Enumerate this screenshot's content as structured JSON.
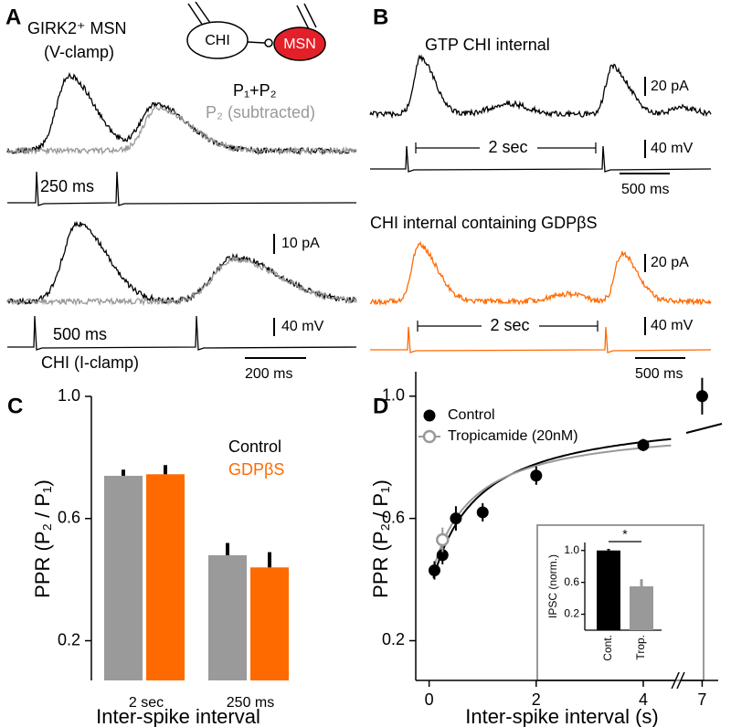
{
  "panels": {
    "A": {
      "letter": "A",
      "title": "GIRK2⁺ MSN",
      "subtitle": "(V-clamp)",
      "cells": [
        "CHI",
        "MSN"
      ],
      "legend": [
        "P₁+P₂",
        "P₂ (subtracted)"
      ],
      "intervals": [
        "250 ms",
        "500 ms"
      ],
      "scale_current": "10 pA",
      "scale_voltage": "40 mV",
      "scale_time": "200 ms",
      "recording": "CHI (I-clamp)"
    },
    "B": {
      "letter": "B",
      "rows": [
        {
          "title": "GTP CHI internal",
          "scale_current": "20 pA",
          "interval": "2 sec",
          "scale_voltage": "40 mV",
          "scale_time": "500 ms"
        },
        {
          "title": "CHI internal containing GDPβS",
          "scale_current": "20 pA",
          "interval": "2 sec",
          "scale_voltage": "40 mV",
          "scale_time": "500 ms"
        }
      ]
    }
  },
  "chart_data": [
    {
      "label": "C",
      "type": "bar",
      "ylabel": "PPR (P₂ / P₁)",
      "xlabel": "Inter-spike interval",
      "categories": [
        "2 sec",
        "250 ms"
      ],
      "series": [
        {
          "name": "Control",
          "color": "#9a9a9a",
          "values": [
            0.74,
            0.48
          ],
          "errors": [
            0.02,
            0.04
          ]
        },
        {
          "name": "GDPβS",
          "color": "#ff6a00",
          "values": [
            0.745,
            0.44
          ],
          "errors": [
            0.03,
            0.05
          ]
        }
      ],
      "ylim": [
        0.07,
        1.0
      ],
      "yticks": [
        0.2,
        0.6,
        {
          "value": 1,
          "label": "1.0"
        }
      ]
    },
    {
      "label": "D",
      "type": "scatter",
      "ylabel": "PPR (P₂ / P₁)",
      "xlabel": "Inter-spike interval (s)",
      "series": [
        {
          "name": "Control",
          "color": "#000000",
          "marker": "filled",
          "x": [
            0.1,
            0.25,
            0.5,
            1,
            2,
            4,
            7
          ],
          "values": [
            0.43,
            0.48,
            0.6,
            0.62,
            0.74,
            0.84,
            1.0
          ],
          "errors": [
            0.03,
            0.03,
            0.04,
            0.03,
            0.03,
            0.02,
            0.06
          ]
        },
        {
          "name": "Tropicamide (20nM)",
          "color": "#999999",
          "marker": "open",
          "x": [
            0.25
          ],
          "values": [
            0.53
          ],
          "errors": [
            0.04
          ]
        }
      ],
      "xlim": [
        -0.25,
        7.3
      ],
      "xbreak": [
        4.6,
        6.6
      ],
      "xticks": [
        0,
        2,
        4,
        7
      ],
      "ylim": [
        0.07,
        1.08
      ],
      "yticks": [
        0.2,
        0.6,
        {
          "value": 1,
          "label": "1.0"
        }
      ]
    },
    {
      "type": "bar",
      "ylabel": "IPSC (norm.)",
      "categories": [
        "Cont.",
        "Trop."
      ],
      "values": [
        1.0,
        0.55
      ],
      "errors": [
        0.02,
        0.09
      ],
      "colors": [
        "#000000",
        "#999999"
      ],
      "ylim": [
        0,
        1.1
      ],
      "yticks": [
        0.2,
        0.6,
        {
          "value": 1,
          "label": "1.0"
        }
      ],
      "annotation": "*"
    }
  ]
}
